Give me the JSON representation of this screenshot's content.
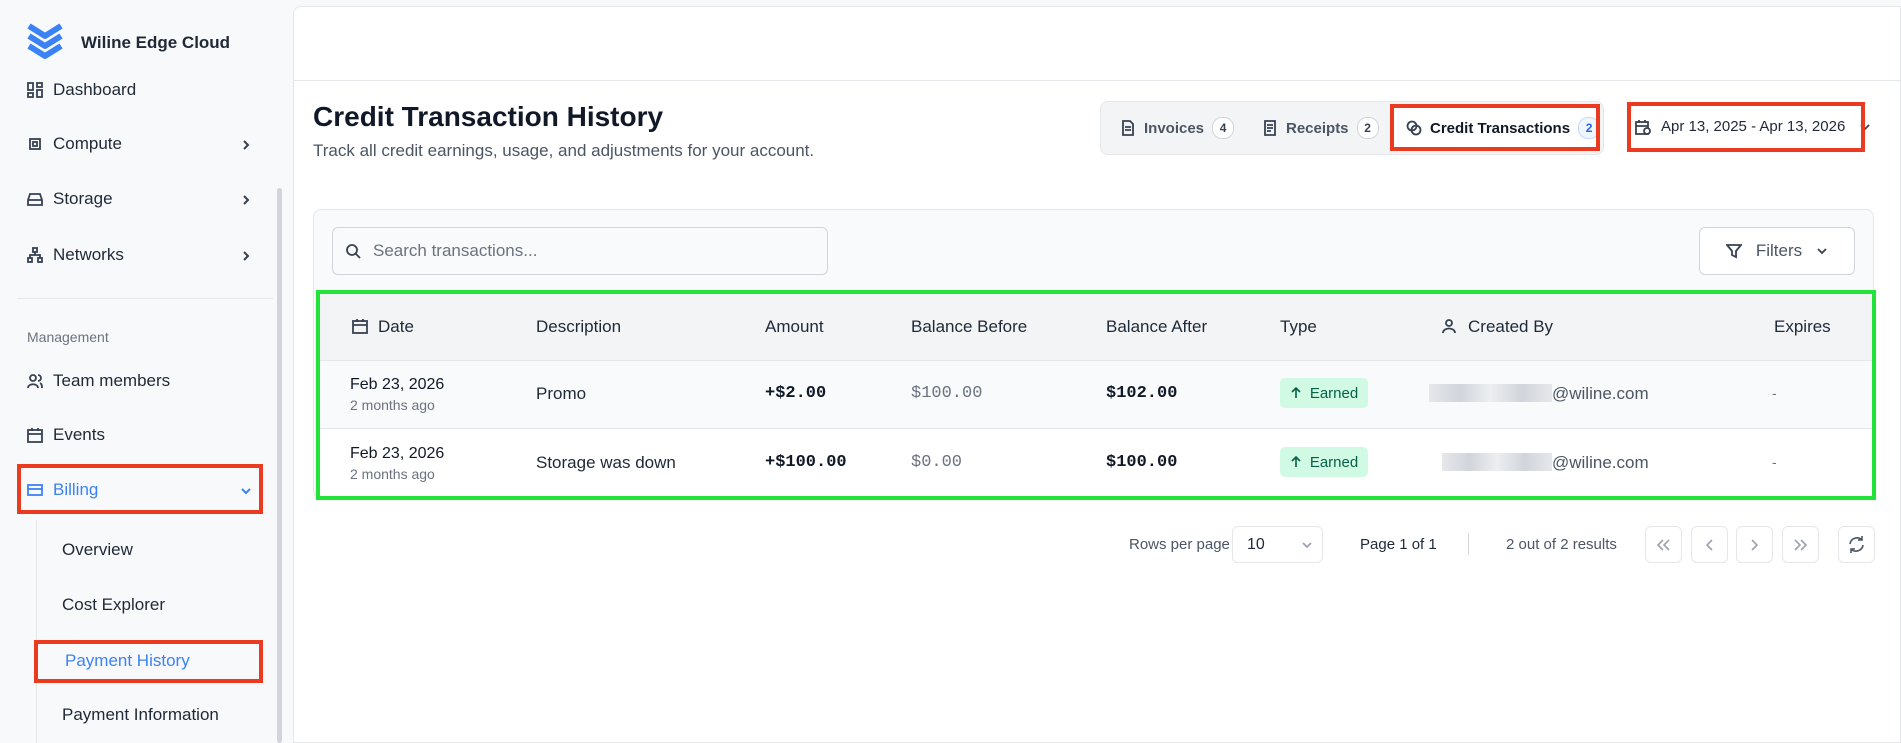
{
  "sidebar": {
    "brand": "Wiline Edge Cloud",
    "nav": [
      "Dashboard",
      "Compute",
      "Storage",
      "Networks"
    ],
    "section": "Management",
    "manage": [
      "Team members",
      "Events",
      "Billing"
    ],
    "billing_items": [
      "Overview",
      "Cost Explorer",
      "Payment History",
      "Payment Information"
    ]
  },
  "header": {
    "title": "Credit Transaction History",
    "subtitle": "Track all credit earnings, usage, and adjustments for your account.",
    "tabs": [
      {
        "label": "Invoices",
        "count": 4
      },
      {
        "label": "Receipts",
        "count": 2
      },
      {
        "label": "Credit Transactions",
        "count": 2
      }
    ],
    "date_range": "Apr 13, 2025 - Apr 13, 2026"
  },
  "toolbar": {
    "search_placeholder": "Search transactions...",
    "filters": "Filters"
  },
  "table": {
    "columns": [
      "Date",
      "Description",
      "Amount",
      "Balance Before",
      "Balance After",
      "Type",
      "Created By",
      "Expires"
    ],
    "rows": [
      [
        "Feb 23, 2026",
        "2 months ago",
        "Promo",
        "+$2.00",
        "$100.00",
        "$102.00",
        "Earned",
        "@wiline.com",
        "-"
      ],
      [
        "Feb 23, 2026",
        "2 months ago",
        "Storage was down",
        "+$100.00",
        "$0.00",
        "$100.00",
        "Earned",
        "@wiline.com",
        "-"
      ]
    ]
  },
  "pagination": {
    "rows_label": "Rows per page",
    "rows_per_page": 10,
    "page": "Page 1 of 1",
    "results": "2 out of 2 results"
  }
}
